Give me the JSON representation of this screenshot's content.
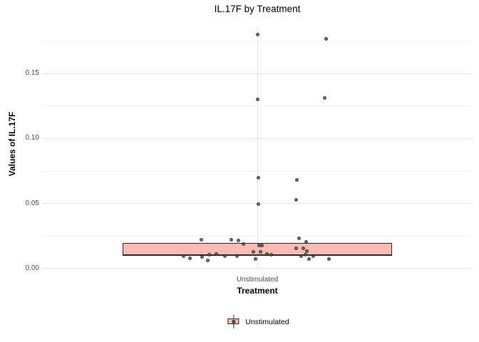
{
  "title": "IL.17F by Treatment",
  "legend": {
    "items": [
      {
        "label": "Unstimulated",
        "fill": "#fbbbb5"
      }
    ]
  },
  "colors": {
    "background": "#ffffff",
    "box_fill": "#fbbbb5",
    "box_border": "#2b2b2b",
    "point_fill": "#575757",
    "point_border": "#242424",
    "grid_major": "#e3e3e3",
    "grid_minor": "#f2f2f2",
    "tick_text": "#4d4d4d",
    "text": "#000000"
  },
  "chart_data": {
    "type": "boxplot",
    "title": "IL.17F by Treatment",
    "xlabel": "Treatment",
    "ylabel": "Values of IL.17F",
    "categories": [
      "Unstimulated"
    ],
    "ylim": [
      -0.0018,
      0.1864
    ],
    "y_ticks": [
      {
        "label": "0.00",
        "value": 0.0
      },
      {
        "label": "0.05",
        "value": 0.05
      },
      {
        "label": "0.10",
        "value": 0.1
      },
      {
        "label": "0.15",
        "value": 0.15
      }
    ],
    "y_minor_ticks": [
      0.025,
      0.075,
      0.125,
      0.175
    ],
    "grid": true,
    "legend_position": "bottom",
    "series": [
      {
        "name": "Unstimulated",
        "box": {
          "q1": 0.0095,
          "median": 0.0105,
          "q3": 0.0195
        },
        "points_note": "each point = [x jitter offset px from category center, IL.17F value]",
        "points": [
          [
            0,
            0.18
          ],
          [
            96,
            0.177
          ],
          [
            0,
            0.13
          ],
          [
            94,
            0.131
          ],
          [
            1,
            0.07
          ],
          [
            55,
            0.068
          ],
          [
            54,
            0.053
          ],
          [
            1,
            0.0495
          ],
          [
            58,
            0.0234
          ],
          [
            -79,
            0.0219
          ],
          [
            -37,
            0.0222
          ],
          [
            -27,
            0.0214
          ],
          [
            68,
            0.0203
          ],
          [
            -20,
            0.0186
          ],
          [
            2,
            0.0179
          ],
          [
            6,
            0.0179
          ],
          [
            54,
            0.0157
          ],
          [
            64,
            0.0156
          ],
          [
            69,
            0.0135
          ],
          [
            4,
            0.013
          ],
          [
            -6,
            0.0128
          ],
          [
            13,
            0.0113
          ],
          [
            -58,
            0.0113
          ],
          [
            -68,
            0.0104
          ],
          [
            19,
            0.0104
          ],
          [
            67,
            0.0104
          ],
          [
            -104,
            0.0095
          ],
          [
            61,
            0.0095
          ],
          [
            78,
            0.0097
          ],
          [
            -46,
            0.0092
          ],
          [
            -29,
            0.0093
          ],
          [
            -78,
            0.0088
          ],
          [
            -95,
            0.0079
          ],
          [
            -3,
            0.0075
          ],
          [
            72,
            0.0073
          ],
          [
            100,
            0.007
          ],
          [
            -70,
            0.006
          ]
        ]
      }
    ]
  }
}
